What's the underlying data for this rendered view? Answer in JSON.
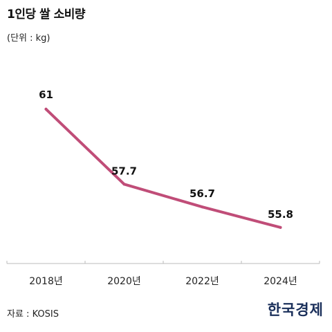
{
  "header": {
    "title": "1인당 쌀 소비량",
    "unit": "(단위 : kg)"
  },
  "footer": {
    "source": "자료 : KOSIS",
    "logo": "한국경제"
  },
  "colors": {
    "line": "#c04d78",
    "axis": "#bbbbbb"
  },
  "chart_data": {
    "type": "line",
    "title": "1인당 쌀 소비량",
    "xlabel": "",
    "ylabel": "",
    "categories": [
      "2018년",
      "2020년",
      "2022년",
      "2024년"
    ],
    "series": [
      {
        "values": [
          61,
          57.7,
          56.7,
          55.8
        ],
        "labels": [
          "61",
          "57.7",
          "56.7",
          "55.8"
        ]
      }
    ],
    "ylim": [
      54.7,
      62.3
    ],
    "grid": false,
    "legend": "none"
  }
}
